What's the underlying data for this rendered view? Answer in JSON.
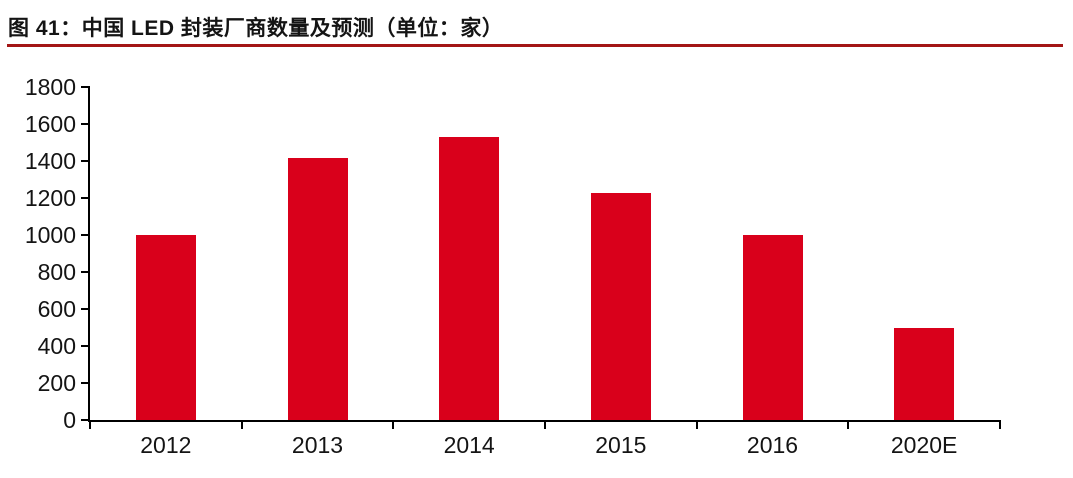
{
  "header": {
    "title": "图 41：中国 LED 封装厂商数量及预测（单位：家）",
    "underline_color": "#A31515"
  },
  "chart_data": {
    "type": "bar",
    "title": "图 41：中国 LED 封装厂商数量及预测（单位：家）",
    "unit_label": "家",
    "categories": [
      "2012",
      "2013",
      "2014",
      "2015",
      "2016",
      "2020E"
    ],
    "values": [
      1000,
      1415,
      1530,
      1225,
      1000,
      500
    ],
    "xlabel": "",
    "ylabel": "",
    "ylim": [
      0,
      1800
    ],
    "ytick_step": 200,
    "ytick_labels": [
      "0",
      "200",
      "400",
      "600",
      "800",
      "1000",
      "1200",
      "1400",
      "1600",
      "1800"
    ],
    "grid": false,
    "legend_position": "none",
    "bar_color": "#D9001B",
    "axis_color": "#000000",
    "label_color": "#141414"
  }
}
